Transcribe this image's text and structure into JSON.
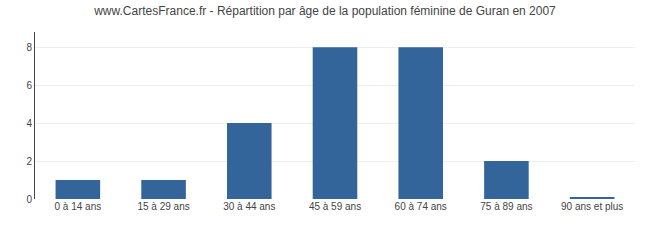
{
  "chart_data": {
    "type": "bar",
    "title": "www.CartesFrance.fr - Répartition par âge de la population féminine de Guran en 2007",
    "categories": [
      "0 à 14 ans",
      "15 à 29 ans",
      "30 à 44 ans",
      "45 à 59 ans",
      "60 à 74 ans",
      "75 à 89 ans",
      "90 ans et plus"
    ],
    "values": [
      1,
      1,
      4,
      8,
      8,
      2,
      0.1
    ],
    "color": "#34659a",
    "ylim": [
      0,
      8.8
    ],
    "yticks": [
      0,
      2,
      4,
      6,
      8
    ],
    "grid": true
  }
}
